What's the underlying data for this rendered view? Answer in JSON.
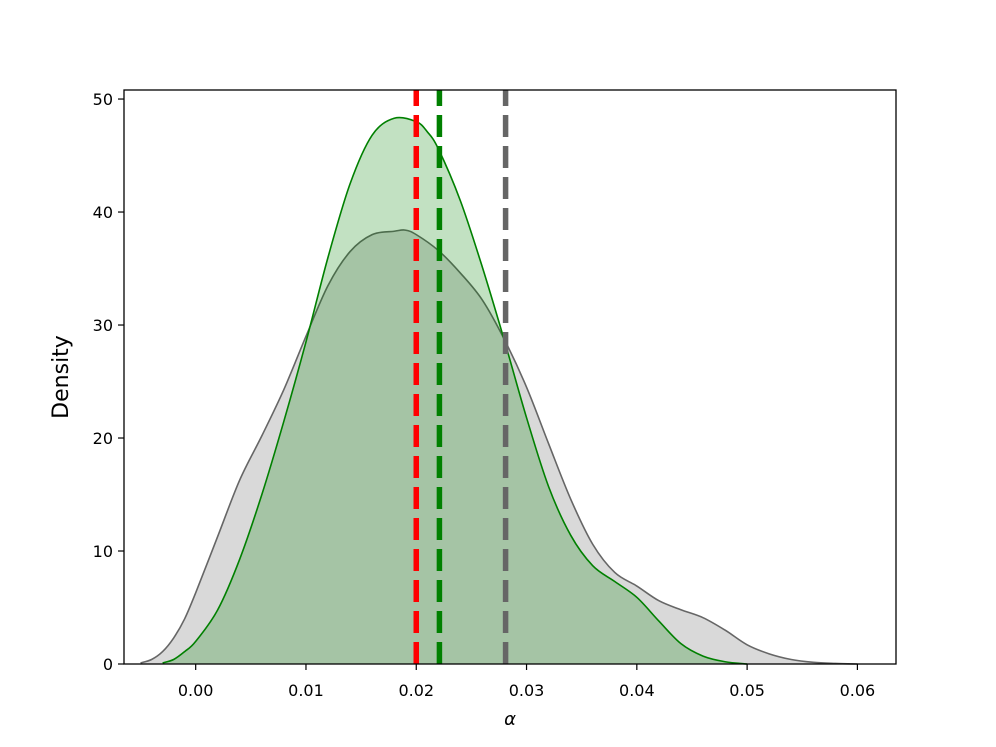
{
  "chart_data": {
    "type": "area",
    "xlabel": "α",
    "ylabel": "Density",
    "xlim": [
      -0.0065,
      0.0635
    ],
    "ylim": [
      0,
      50.8
    ],
    "xticks": [
      0.0,
      0.01,
      0.02,
      0.03,
      0.04,
      0.05,
      0.06
    ],
    "xtick_labels": [
      "0.00",
      "0.01",
      "0.02",
      "0.03",
      "0.04",
      "0.05",
      "0.06"
    ],
    "yticks": [
      0,
      10,
      20,
      30,
      40,
      50
    ],
    "ytick_labels": [
      "0",
      "10",
      "20",
      "30",
      "40",
      "50"
    ],
    "grid": false,
    "series": [
      {
        "color": "#666666",
        "fill": "#d9d9d9",
        "x": [
          -0.005,
          -0.004,
          -0.003,
          -0.002,
          -0.001,
          0.0,
          0.002,
          0.004,
          0.006,
          0.008,
          0.01,
          0.012,
          0.014,
          0.016,
          0.018,
          0.019,
          0.02,
          0.022,
          0.024,
          0.026,
          0.028,
          0.03,
          0.032,
          0.034,
          0.036,
          0.038,
          0.04,
          0.042,
          0.044,
          0.046,
          0.048,
          0.05,
          0.052,
          0.054,
          0.056,
          0.058,
          0.06
        ],
        "y": [
          0.1,
          0.4,
          1.1,
          2.3,
          4.0,
          6.3,
          11.3,
          16.3,
          20.2,
          24.3,
          29.0,
          33.5,
          36.5,
          38.0,
          38.3,
          38.4,
          38.0,
          36.6,
          34.6,
          32.2,
          28.7,
          24.5,
          19.5,
          14.6,
          10.6,
          8.1,
          6.9,
          5.6,
          4.8,
          4.1,
          3.0,
          1.7,
          0.9,
          0.4,
          0.15,
          0.05,
          0.0
        ]
      },
      {
        "color": "#008000",
        "fill": "rgba(0,128,0,0.24)",
        "x": [
          -0.003,
          -0.002,
          -0.001,
          0.0,
          0.002,
          0.004,
          0.006,
          0.008,
          0.01,
          0.012,
          0.014,
          0.016,
          0.018,
          0.02,
          0.021,
          0.022,
          0.024,
          0.026,
          0.028,
          0.03,
          0.032,
          0.034,
          0.036,
          0.038,
          0.04,
          0.042,
          0.044,
          0.046,
          0.048,
          0.05
        ],
        "y": [
          0.1,
          0.4,
          1.1,
          2.0,
          4.8,
          9.3,
          15.0,
          21.5,
          28.5,
          36.0,
          42.5,
          46.8,
          48.3,
          48.0,
          47.1,
          45.6,
          41.0,
          35.1,
          28.6,
          21.8,
          15.7,
          11.4,
          8.7,
          7.3,
          5.9,
          3.8,
          1.8,
          0.7,
          0.2,
          0.0
        ]
      }
    ],
    "vlines": [
      {
        "x": 0.02,
        "color": "#ff0000"
      },
      {
        "x": 0.0221,
        "color": "#008000"
      },
      {
        "x": 0.0281,
        "color": "#666666"
      }
    ]
  }
}
